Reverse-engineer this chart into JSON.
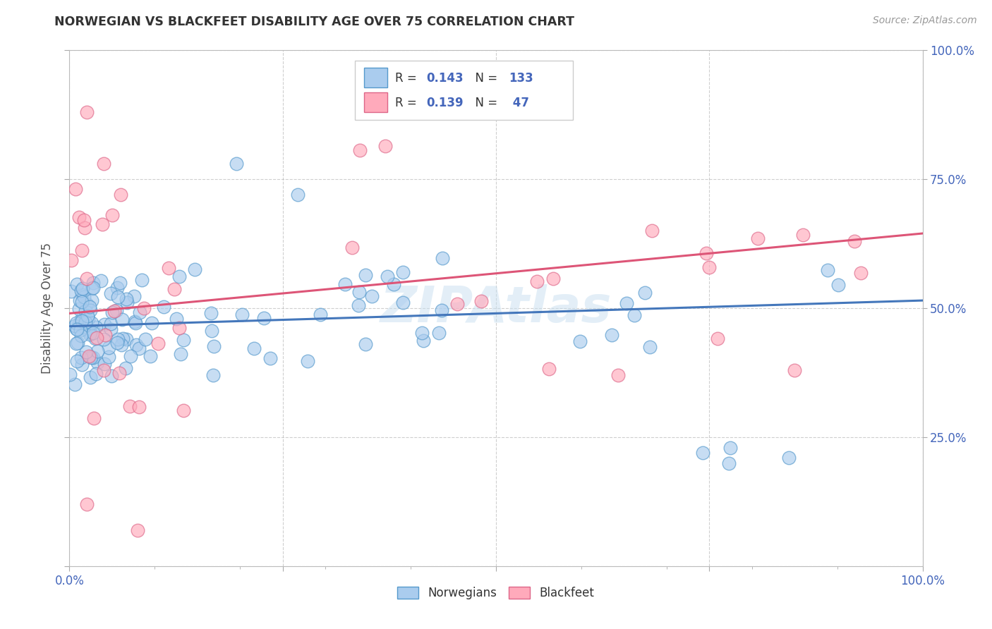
{
  "title": "NORWEGIAN VS BLACKFEET DISABILITY AGE OVER 75 CORRELATION CHART",
  "source": "Source: ZipAtlas.com",
  "ylabel": "Disability Age Over 75",
  "xlim": [
    0,
    1.0
  ],
  "ylim": [
    0,
    1.0
  ],
  "norwegian_R": 0.143,
  "norwegian_N": 133,
  "blackfeet_R": 0.139,
  "blackfeet_N": 47,
  "norwegian_scatter_color": "#aaccee",
  "norwegian_edge_color": "#5599cc",
  "blackfeet_scatter_color": "#ffaabb",
  "blackfeet_edge_color": "#dd6688",
  "norwegian_line_color": "#4477bb",
  "blackfeet_line_color": "#dd5577",
  "tick_color": "#4466bb",
  "watermark_color": "#c8dff0",
  "nor_line_start_y": 0.465,
  "nor_line_end_y": 0.515,
  "bla_line_start_y": 0.49,
  "bla_line_end_y": 0.645
}
